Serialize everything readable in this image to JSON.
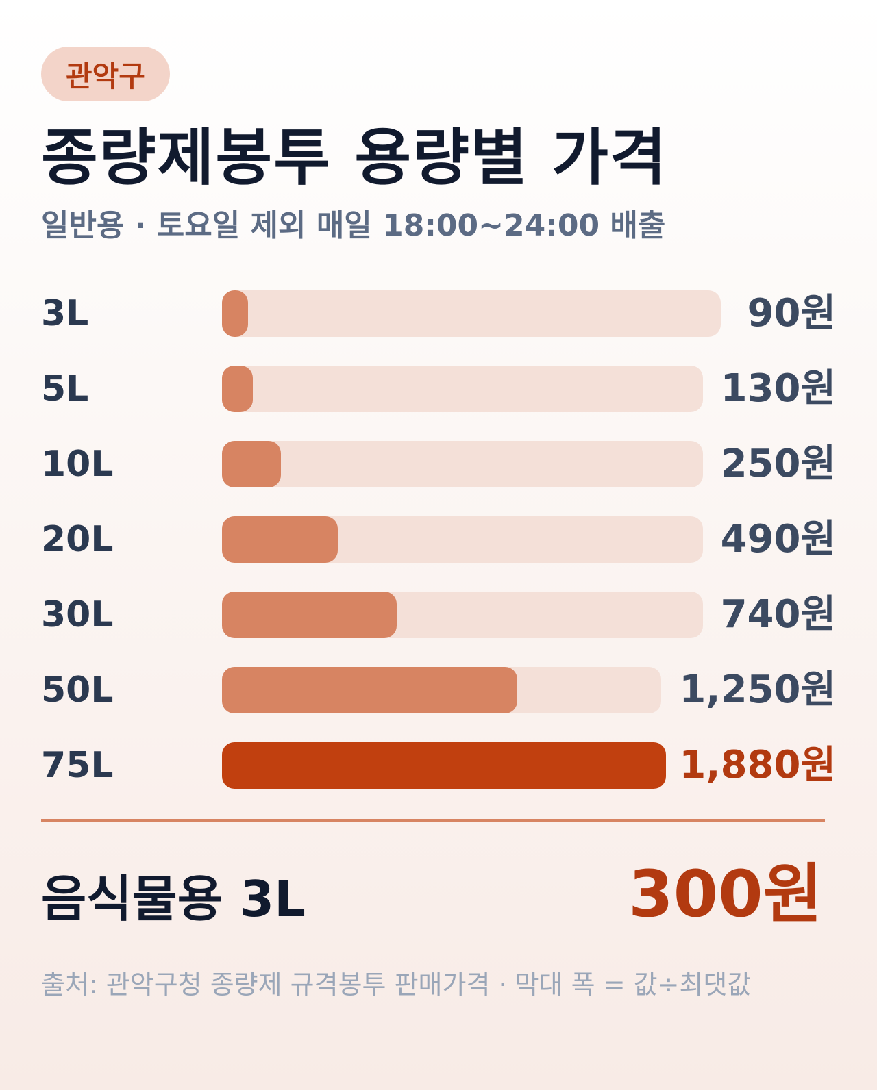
{
  "header": {
    "badge": "관악구",
    "title": "종량제봉투 용량별 가격",
    "subtitle": "일반용 · 토요일 제외 매일 18:00~24:00 배출"
  },
  "colors": {
    "bar_fill": "#d78462",
    "bar_track": "#f4e0d8",
    "highlight_fill": "#c1400f",
    "accent_text": "#b23a10"
  },
  "chart_data": {
    "type": "bar",
    "orientation": "horizontal",
    "categories": [
      "3L",
      "5L",
      "10L",
      "20L",
      "30L",
      "50L",
      "75L"
    ],
    "values": [
      90,
      130,
      250,
      490,
      740,
      1250,
      1880
    ],
    "value_labels": [
      "90원",
      "130원",
      "250원",
      "490원",
      "740원",
      "1,250원",
      "1,880원"
    ],
    "highlight_index": 6,
    "max": 1880,
    "title": "종량제봉투 용량별 가격",
    "xlabel": "",
    "ylabel": ""
  },
  "food": {
    "label": "음식물용 3L",
    "value": "300원"
  },
  "source": "출처: 관악구청 종량제 규격봉투 판매가격 · 막대 폭 = 값÷최댓값"
}
